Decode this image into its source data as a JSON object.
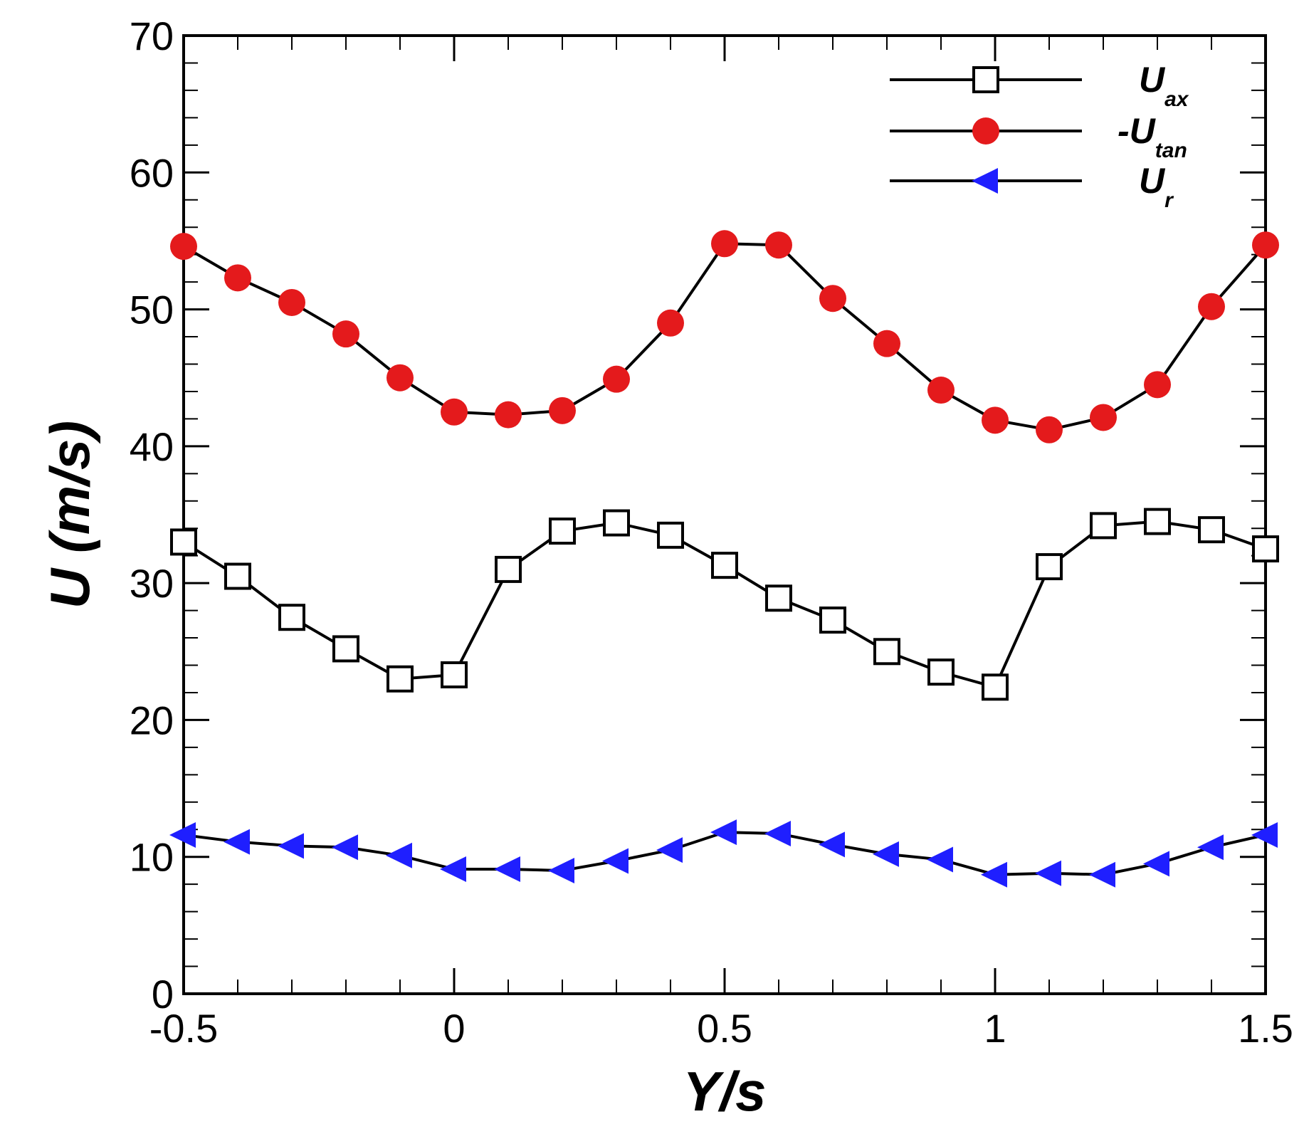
{
  "chart_data": {
    "type": "line",
    "xlabel": "Y/s",
    "ylabel": "U (m/s)",
    "xlim": [
      -0.5,
      1.5
    ],
    "ylim": [
      0,
      70
    ],
    "xticks": [
      -0.5,
      0,
      0.5,
      1,
      1.5
    ],
    "xtick_labels": [
      "-0.5",
      "0",
      "0.5",
      "1",
      "1.5"
    ],
    "xminor_step": 0.1,
    "yticks": [
      0,
      10,
      20,
      30,
      40,
      50,
      60,
      70
    ],
    "ytick_labels": [
      "0",
      "10",
      "20",
      "30",
      "40",
      "50",
      "60",
      "70"
    ],
    "yminor_step": 2,
    "grid": false,
    "legend_position": "top-right",
    "x": [
      -0.5,
      -0.4,
      -0.3,
      -0.2,
      -0.1,
      0,
      0.1,
      0.2,
      0.3,
      0.4,
      0.5,
      0.6,
      0.7,
      0.8,
      0.9,
      1.0,
      1.1,
      1.2,
      1.3,
      1.4,
      1.5
    ],
    "series": [
      {
        "name": "U_ax",
        "legend_main": "U",
        "legend_sub": "ax",
        "marker": "square-open",
        "color": "#000000",
        "values": [
          33.0,
          30.5,
          27.5,
          25.2,
          23.0,
          23.3,
          31.0,
          33.8,
          34.4,
          33.5,
          31.3,
          28.9,
          27.3,
          25.0,
          23.5,
          22.4,
          31.2,
          34.2,
          34.5,
          33.9,
          32.5
        ]
      },
      {
        "name": "-U_tan",
        "legend_main": "-U",
        "legend_sub": "tan",
        "marker": "circle-filled",
        "color": "#e41a1c",
        "values": [
          54.6,
          52.3,
          50.5,
          48.2,
          45.0,
          42.5,
          42.3,
          42.6,
          44.9,
          49.0,
          54.8,
          54.7,
          50.8,
          47.5,
          44.1,
          41.9,
          41.2,
          42.1,
          44.5,
          50.2,
          54.7
        ]
      },
      {
        "name": "U_r",
        "legend_main": "U",
        "legend_sub": "r",
        "marker": "triangle-left-filled",
        "color": "#1f1fff",
        "values": [
          11.6,
          11.1,
          10.8,
          10.7,
          10.1,
          9.1,
          9.1,
          9.0,
          9.7,
          10.5,
          11.8,
          11.7,
          10.9,
          10.2,
          9.8,
          8.7,
          8.8,
          8.7,
          9.5,
          10.7,
          11.6
        ]
      }
    ]
  }
}
